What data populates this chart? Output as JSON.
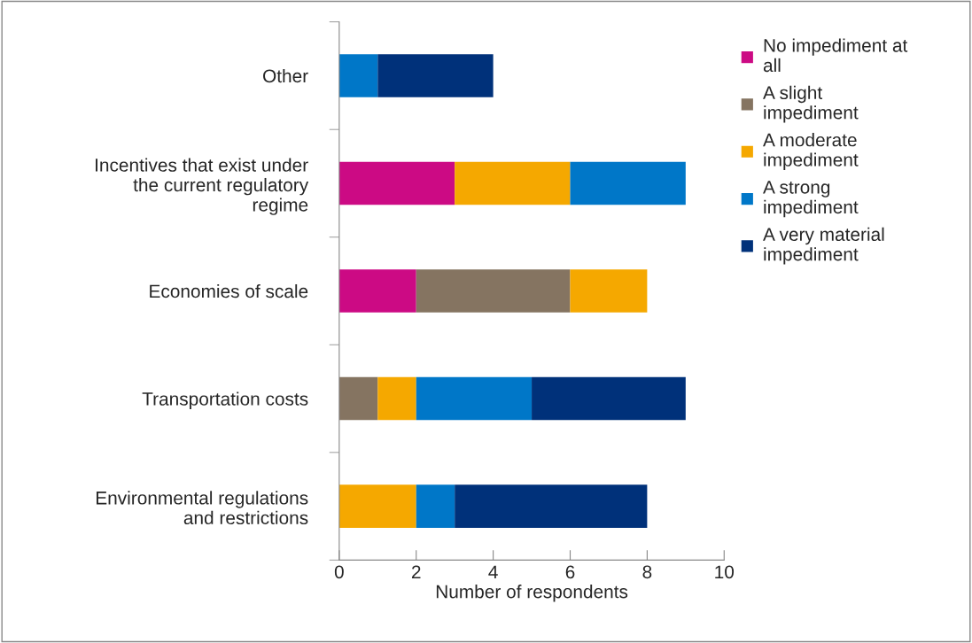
{
  "chart_data": {
    "type": "bar",
    "orientation": "horizontal",
    "stacked": true,
    "categories": [
      "Other",
      "Incentives that exist under\nthe current regulatory\nregime",
      "Economies of scale",
      "Transportation costs",
      "Environmental regulations\nand restrictions"
    ],
    "series": [
      {
        "name": "No impediment at\nall",
        "color": "#cc0a84",
        "values": [
          0,
          3,
          2,
          0,
          0
        ]
      },
      {
        "name": "A slight\nimpediment",
        "color": "#857461",
        "values": [
          0,
          0,
          4,
          1,
          0
        ]
      },
      {
        "name": "A moderate\nimpediment",
        "color": "#f5a800",
        "values": [
          0,
          3,
          2,
          1,
          2
        ]
      },
      {
        "name": "A strong\nimpediment",
        "color": "#0077c8",
        "values": [
          1,
          3,
          0,
          3,
          1
        ]
      },
      {
        "name": "A very material\nimpediment",
        "color": "#00317a",
        "values": [
          3,
          0,
          0,
          4,
          5
        ]
      }
    ],
    "xlim": [
      0,
      10
    ],
    "xticks": [
      0,
      2,
      4,
      6,
      8,
      10
    ],
    "xlabel": "Number of respondents",
    "grid": false,
    "legend": "right"
  }
}
